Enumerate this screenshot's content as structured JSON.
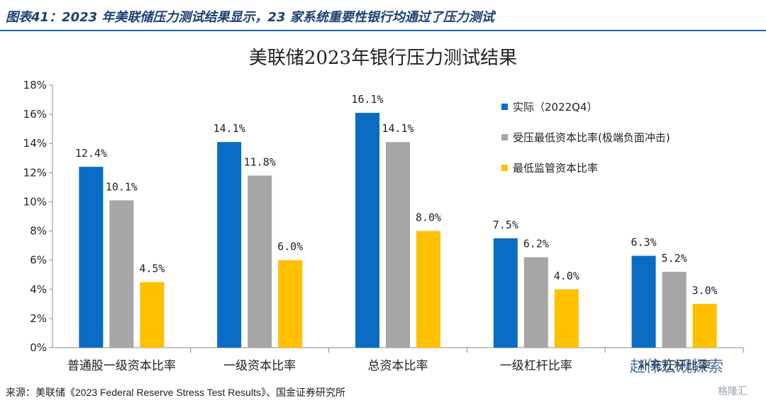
{
  "header": {
    "text": "图表41：2023 年美联储压力测试结果显示，23 家系统重要性银行均通过了压力测试"
  },
  "chart_data": {
    "type": "bar",
    "title": "美联储2023年银行压力测试结果",
    "categories": [
      "普通股一级资本比率",
      "一级资本比率",
      "总资本比率",
      "一级杠杆比率",
      "补充杠杆比率"
    ],
    "series": [
      {
        "name": "实际（2022Q4）",
        "color": "#0a6cc4",
        "values": [
          12.4,
          14.1,
          16.1,
          7.5,
          6.3
        ]
      },
      {
        "name": "受压最低资本比率(极端负面冲击)",
        "color": "#a6a6a6",
        "values": [
          10.1,
          11.8,
          14.1,
          6.2,
          5.2
        ]
      },
      {
        "name": "最低监管资本比率",
        "color": "#ffc000",
        "values": [
          4.5,
          6.0,
          8.0,
          4.0,
          3.0
        ]
      }
    ],
    "data_labels": [
      [
        "12.4%",
        "10.1%",
        "4.5%"
      ],
      [
        "14.1%",
        "11.8%",
        "6.0%"
      ],
      [
        "16.1%",
        "14.1%",
        "8.0%"
      ],
      [
        "7.5%",
        "6.2%",
        "4.0%"
      ],
      [
        "6.3%",
        "5.2%",
        "3.0%"
      ]
    ],
    "ylim": [
      0,
      18
    ],
    "yticks": [
      0,
      2,
      4,
      6,
      8,
      10,
      12,
      14,
      16,
      18
    ],
    "ytick_labels": [
      "0%",
      "2%",
      "4%",
      "6%",
      "8%",
      "10%",
      "12%",
      "14%",
      "16%",
      "18%"
    ],
    "legend_position": "top-right",
    "grid": false
  },
  "watermark": {
    "text": "赵伟宏观探索"
  },
  "source": {
    "text": "来源：美联储《2023 Federal Reserve Stress Test Results》、国金证券研究所"
  },
  "logo": {
    "text": "格隆汇"
  }
}
